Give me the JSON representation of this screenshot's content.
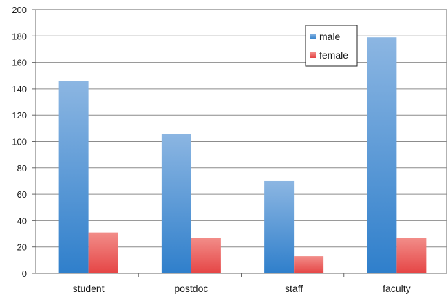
{
  "chart_data": {
    "type": "bar",
    "categories": [
      "student",
      "postdoc",
      "staff",
      "faculty"
    ],
    "series": [
      {
        "name": "male",
        "values": [
          146,
          106,
          70,
          179
        ],
        "color": "#3f86cc"
      },
      {
        "name": "female",
        "values": [
          31,
          27,
          13,
          27
        ],
        "color": "#e8524f"
      }
    ],
    "title": "",
    "xlabel": "",
    "ylabel": "",
    "ylim": [
      0,
      200
    ],
    "yticks": [
      "0",
      "20",
      "40",
      "60",
      "80",
      "100",
      "120",
      "140",
      "160",
      "180",
      "200"
    ],
    "grid": true,
    "legend_position": "top-right"
  }
}
